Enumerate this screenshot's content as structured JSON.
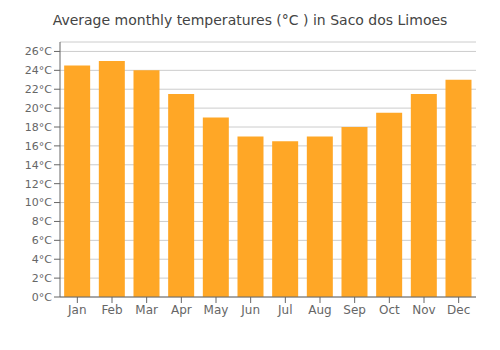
{
  "chart_data": {
    "type": "bar",
    "title": "Average monthly temperatures (°C ) in Saco dos Limoes",
    "categories": [
      "Jan",
      "Feb",
      "Mar",
      "Apr",
      "May",
      "Jun",
      "Jul",
      "Aug",
      "Sep",
      "Oct",
      "Nov",
      "Dec"
    ],
    "values": [
      24.5,
      25.0,
      24.0,
      21.5,
      19.0,
      17.0,
      16.5,
      17.0,
      18.0,
      19.5,
      21.5,
      23.0
    ],
    "color": "#FFA726",
    "ylim": [
      0,
      27
    ],
    "yticks": [
      {
        "value": 0,
        "label": "0°C"
      },
      {
        "value": 2,
        "label": "2°C"
      },
      {
        "value": 4,
        "label": "4°C"
      },
      {
        "value": 6,
        "label": "6°C"
      },
      {
        "value": 8,
        "label": "8°C"
      },
      {
        "value": 10,
        "label": "10°C"
      },
      {
        "value": 12,
        "label": "12°C"
      },
      {
        "value": 14,
        "label": "14°C"
      },
      {
        "value": 16,
        "label": "16°C"
      },
      {
        "value": 18,
        "label": "18°C"
      },
      {
        "value": 20,
        "label": "20°C"
      },
      {
        "value": 22,
        "label": "22°C"
      },
      {
        "value": 24,
        "label": "24°C"
      },
      {
        "value": 26,
        "label": "26°C"
      }
    ],
    "grid": true
  }
}
